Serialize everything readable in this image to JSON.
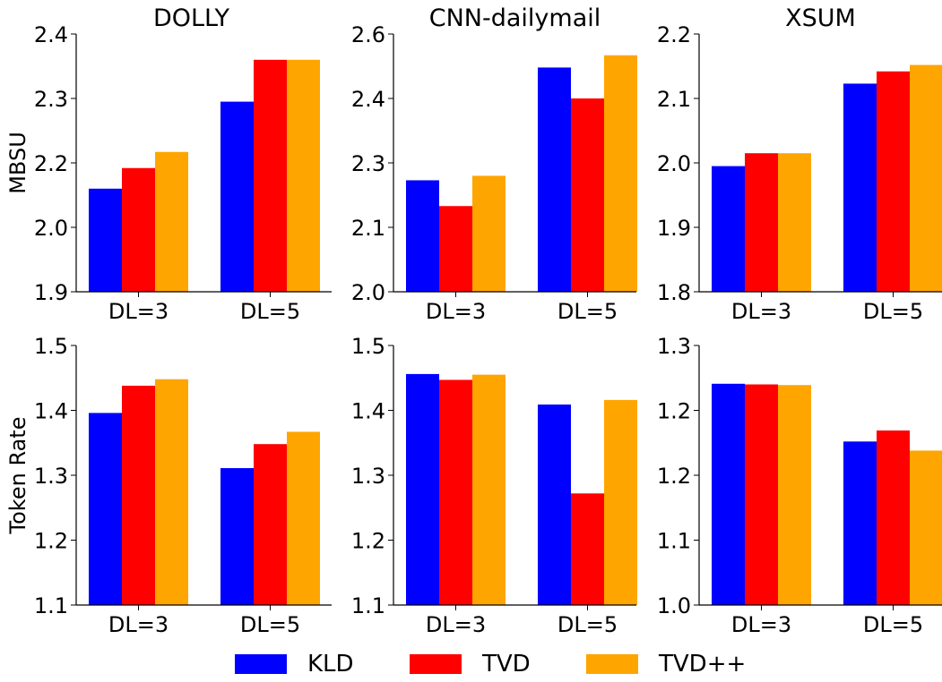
{
  "chart_data": [
    {
      "type": "bar",
      "title": "DOLLY",
      "ylabel": "MBSU",
      "categories": [
        "DL=3",
        "DL=5"
      ],
      "yticks": [
        "1.9",
        "2.0",
        "2.2",
        "2.3",
        "2.4"
      ],
      "ylim": [
        0,
        4
      ],
      "series": [
        {
          "name": "KLD",
          "values": [
            1.6,
            2.95
          ]
        },
        {
          "name": "TVD",
          "values": [
            1.92,
            3.6
          ]
        },
        {
          "name": "TVD++",
          "values": [
            2.17,
            3.6
          ]
        }
      ]
    },
    {
      "type": "bar",
      "title": "CNN-dailymail",
      "ylabel": "",
      "categories": [
        "DL=3",
        "DL=5"
      ],
      "yticks": [
        "2.0",
        "2.1",
        "2.3",
        "2.4",
        "2.6"
      ],
      "ylim": [
        0,
        4
      ],
      "series": [
        {
          "name": "KLD",
          "values": [
            1.73,
            3.48
          ]
        },
        {
          "name": "TVD",
          "values": [
            1.33,
            3.0
          ]
        },
        {
          "name": "TVD++",
          "values": [
            1.8,
            3.67
          ]
        }
      ]
    },
    {
      "type": "bar",
      "title": "XSUM",
      "ylabel": "",
      "categories": [
        "DL=3",
        "DL=5"
      ],
      "yticks": [
        "1.8",
        "1.9",
        "2.0",
        "2.1",
        "2.2"
      ],
      "ylim": [
        0,
        4
      ],
      "series": [
        {
          "name": "KLD",
          "values": [
            1.95,
            3.23
          ]
        },
        {
          "name": "TVD",
          "values": [
            2.15,
            3.42
          ]
        },
        {
          "name": "TVD++",
          "values": [
            2.15,
            3.52
          ]
        }
      ]
    },
    {
      "type": "bar",
      "title": "",
      "ylabel": "Token Rate",
      "categories": [
        "DL=3",
        "DL=5"
      ],
      "yticks": [
        "1.1",
        "1.2",
        "1.3",
        "1.4",
        "1.5"
      ],
      "ylim": [
        0,
        4
      ],
      "series": [
        {
          "name": "KLD",
          "values": [
            2.96,
            2.11
          ]
        },
        {
          "name": "TVD",
          "values": [
            3.38,
            2.48
          ]
        },
        {
          "name": "TVD++",
          "values": [
            3.48,
            2.67
          ]
        }
      ]
    },
    {
      "type": "bar",
      "title": "",
      "ylabel": "",
      "categories": [
        "DL=3",
        "DL=5"
      ],
      "yticks": [
        "1.1",
        "1.2",
        "1.3",
        "1.4",
        "1.5"
      ],
      "ylim": [
        0,
        4
      ],
      "series": [
        {
          "name": "KLD",
          "values": [
            3.56,
            3.09
          ]
        },
        {
          "name": "TVD",
          "values": [
            3.47,
            1.72
          ]
        },
        {
          "name": "TVD++",
          "values": [
            3.55,
            3.16
          ]
        }
      ]
    },
    {
      "type": "bar",
      "title": "",
      "ylabel": "",
      "categories": [
        "DL=3",
        "DL=5"
      ],
      "yticks": [
        "1.0",
        "1.1",
        "1.2",
        "1.2",
        "1.3"
      ],
      "ylim": [
        0,
        4
      ],
      "series": [
        {
          "name": "KLD",
          "values": [
            3.41,
            2.52
          ]
        },
        {
          "name": "TVD",
          "values": [
            3.4,
            2.69
          ]
        },
        {
          "name": "TVD++",
          "values": [
            3.39,
            2.38
          ]
        }
      ]
    }
  ],
  "legend": [
    {
      "label": "KLD",
      "color": "#0000ff"
    },
    {
      "label": "TVD",
      "color": "#ff0000"
    },
    {
      "label": "TVD++",
      "color": "#ffa500"
    }
  ],
  "series_colors": [
    "#0000ff",
    "#ff0000",
    "#ffa500"
  ]
}
